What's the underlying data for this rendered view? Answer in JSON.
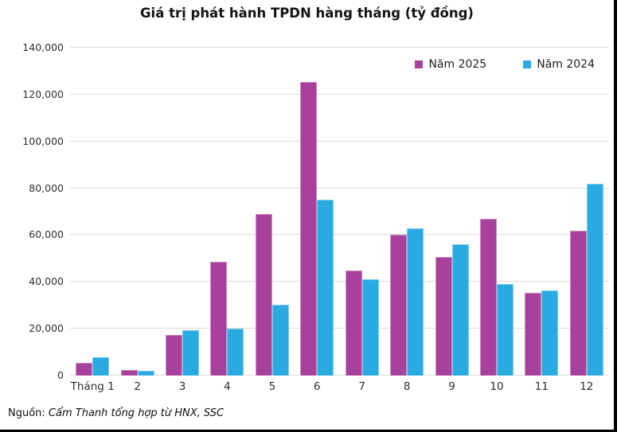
{
  "title": "Giá trị phát hành TPDN hàng tháng (tỷ đồng)",
  "legend": [
    {
      "label": "Năm 2025",
      "color": "#A8419B"
    },
    {
      "label": "Năm 2024",
      "color": "#29ABE2"
    }
  ],
  "source": {
    "prefix": "Nguồn: ",
    "text": "Cẩm Thanh tổng hợp từ HNX, SSC"
  },
  "colors": {
    "series_2025": "#A8419B",
    "series_2024": "#29ABE2",
    "gridline": "#dbdbdb",
    "text": "#2e2e2e",
    "frame_border": "#000000"
  },
  "chart_data": {
    "type": "bar",
    "title": "Giá trị phát hành TPDN hàng tháng (tỷ đồng)",
    "categories": [
      "Tháng 1",
      "2",
      "3",
      "4",
      "5",
      "6",
      "7",
      "8",
      "9",
      "10",
      "11",
      "12"
    ],
    "series": [
      {
        "name": "Năm 2025",
        "color": "#A8419B",
        "values": [
          5500,
          2400,
          17300,
          48500,
          69000,
          125500,
          45000,
          60300,
          50600,
          66800,
          35200,
          61800
        ]
      },
      {
        "name": "Năm 2024",
        "color": "#29ABE2",
        "values": [
          7800,
          2200,
          19300,
          20000,
          30300,
          75000,
          41000,
          62800,
          56100,
          39200,
          36500,
          81800
        ]
      }
    ],
    "xlabel": "",
    "ylabel": "",
    "ylim": [
      0,
      140000
    ],
    "ytick_step": 20000,
    "ytick_labels": [
      "0",
      "20,000",
      "40,000",
      "60,000",
      "80,000",
      "100,000",
      "120,000",
      "140,000"
    ],
    "grid": true,
    "legend_position": "top-right"
  }
}
